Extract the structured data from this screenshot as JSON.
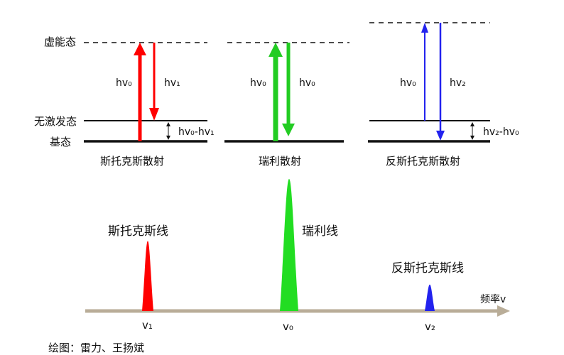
{
  "levels": {
    "virtual": "虚能态",
    "excited": "无激发态",
    "ground": "基态"
  },
  "panels": [
    {
      "name": "斯托克斯散射",
      "up_label": "hv₀",
      "down_label": "hv₁",
      "shift_label": "hv₀-hv₁",
      "up_color": "#ff0000",
      "down_color": "#ff0000"
    },
    {
      "name": "瑞利散射",
      "up_label": "hv₀",
      "down_label": "hv₀",
      "shift_label": "",
      "up_color": "#22cc22",
      "down_color": "#22cc22"
    },
    {
      "name": "反斯托克斯散射",
      "up_label": "hv₀",
      "down_label": "hv₂",
      "shift_label": "hv₂-hv₀",
      "up_color": "#2222ee",
      "down_color": "#2222ee"
    }
  ],
  "spectrum": {
    "axis_label": "频率v",
    "axis_color": "#b9ad98",
    "peaks": [
      {
        "label": "斯托克斯线",
        "tick": "v₁",
        "relative_height": 0.53,
        "color": "#ff0000"
      },
      {
        "label": "瑞利线",
        "tick": "v₀",
        "relative_height": 1.0,
        "color": "#22dd22"
      },
      {
        "label": "反斯托克斯线",
        "tick": "v₂",
        "relative_height": 0.2,
        "color": "#2222ee"
      }
    ]
  },
  "credit": "绘图：雷力、王扬斌"
}
